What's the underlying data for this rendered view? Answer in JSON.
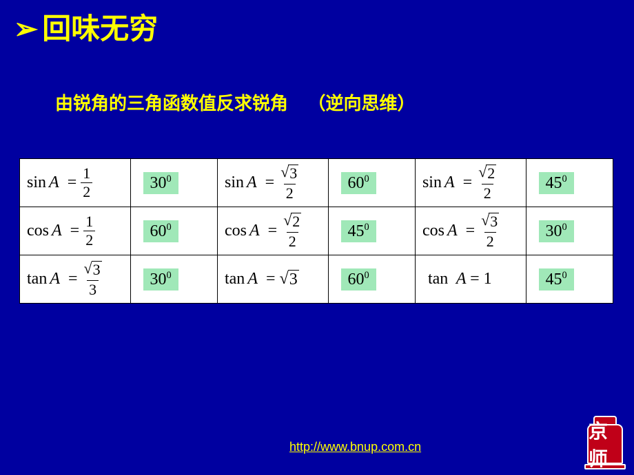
{
  "slide": {
    "background_color": "#0000a0",
    "title": {
      "text": "回味无穷",
      "color": "#ffff00",
      "fontsize": 42,
      "bullet": "➢"
    },
    "subtitle": {
      "main": "由锐角的三角函数值反求锐角",
      "note": "（逆向思维）",
      "color": "#ffff00",
      "fontsize": 26
    },
    "table": {
      "type": "table",
      "border_color": "#000000",
      "cell_background": "#ffffff",
      "answer_highlight_color": "#a0e8b8",
      "text_color": "#000000",
      "font_family": "Times New Roman",
      "rows": [
        [
          {
            "fn": "sin",
            "var": "A",
            "rhs_num": "1",
            "rhs_den": "2",
            "ans": "30",
            "ans_sup": "0"
          },
          {
            "fn": "sin",
            "var": "A",
            "rhs_num_sqrt": "3",
            "rhs_den": "2",
            "ans": "60",
            "ans_sup": "0"
          },
          {
            "fn": "sin",
            "var": "A",
            "rhs_num_sqrt": "2",
            "rhs_den": "2",
            "ans": "45",
            "ans_sup": "0"
          }
        ],
        [
          {
            "fn": "cos",
            "var": "A",
            "rhs_num": "1",
            "rhs_den": "2",
            "ans": "60",
            "ans_sup": "0"
          },
          {
            "fn": "cos",
            "var": "A",
            "rhs_num_sqrt": "2",
            "rhs_den": "2",
            "ans": "45",
            "ans_sup": "0"
          },
          {
            "fn": "cos",
            "var": "A",
            "rhs_num_sqrt": "3",
            "rhs_den": "2",
            "ans": "30",
            "ans_sup": "0"
          }
        ],
        [
          {
            "fn": "tan",
            "var": "A",
            "rhs_num_sqrt": "3",
            "rhs_den": "3",
            "ans": "30",
            "ans_sup": "0"
          },
          {
            "fn": "tan",
            "var": "A",
            "rhs_sqrt_only": "3",
            "ans": "60",
            "ans_sup": "0"
          },
          {
            "fn": "tan",
            "var": "A",
            "rhs_plain": "1",
            "ans": "45",
            "ans_sup": "0"
          }
        ]
      ]
    },
    "link": {
      "text": "http://www.bnup.com.cn",
      "color": "#ffff00"
    },
    "logo": {
      "text": "京师",
      "bg": "#c00018",
      "fg": "#ffffff"
    }
  }
}
